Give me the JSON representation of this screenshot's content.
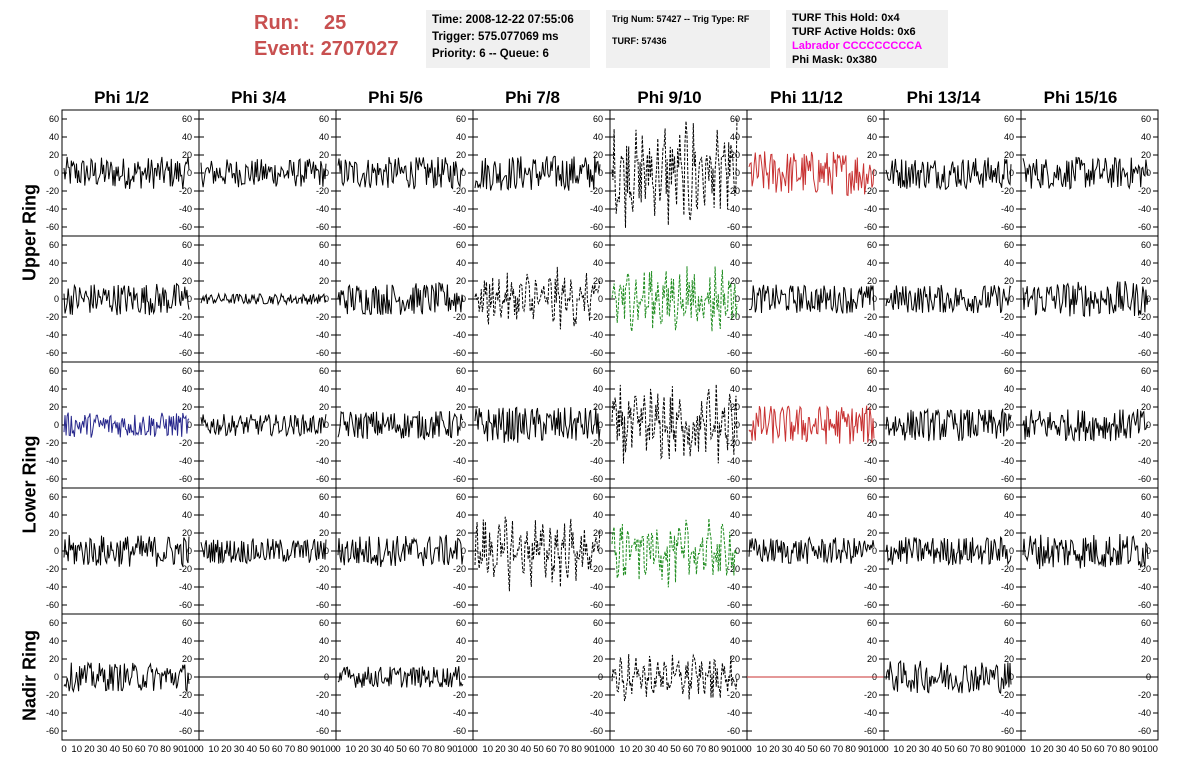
{
  "header": {
    "run_label": "Run:",
    "run_value": "25",
    "event_label": "Event:",
    "event_value": "2707027"
  },
  "info_time": {
    "time": "Time: 2008-12-22 07:55:06",
    "trigger": "Trigger: 575.077069 ms",
    "priority": "Priority: 6 -- Queue: 6"
  },
  "info_trig": {
    "trig_line": "Trig Num: 57427 -- Trig Type: RF",
    "turf_line": "TURF: 57436"
  },
  "info_turf": {
    "hold": "TURF This Hold: 0x4",
    "active": "TURF Active Holds: 0x6",
    "labrador": "Labrador CCCCCCCCCA",
    "phi_mask": "Phi Mask: 0x380"
  },
  "colors": {
    "run_text": "#c85050",
    "info_bg": "#f0f0f0",
    "labrador": "#ff00ff",
    "trace_black": "#000000",
    "trace_red": "#c83232",
    "trace_blue": "#28288c",
    "trace_green": "#1e8c1e"
  },
  "columns": [
    "Phi 1/2",
    "Phi 3/4",
    "Phi 5/6",
    "Phi 7/8",
    "Phi 9/10",
    "Phi 11/12",
    "Phi 13/14",
    "Phi 15/16"
  ],
  "row_groups": [
    "Upper Ring",
    "Lower Ring",
    "Nadir Ring"
  ],
  "chart_data": {
    "type": "line",
    "grid_rows": 5,
    "grid_cols": 8,
    "xlim": [
      0,
      100
    ],
    "ylim": [
      -70,
      70
    ],
    "y_ticks": [
      -60,
      -40,
      -20,
      0,
      20,
      40,
      60
    ],
    "x_tick_labels": [
      "0",
      "10",
      "20",
      "30",
      "40",
      "50",
      "60",
      "70",
      "80",
      "90",
      "100"
    ],
    "panels": [
      [
        {
          "color": "black",
          "amp": 18,
          "style": "solid"
        },
        {
          "color": "black",
          "amp": 16,
          "style": "solid"
        },
        {
          "color": "black",
          "amp": 18,
          "style": "solid"
        },
        {
          "color": "black",
          "amp": 20,
          "style": "solid"
        },
        {
          "color": "black",
          "amp": 45,
          "style": "dashed"
        },
        {
          "color": "red",
          "amp": 25,
          "style": "solid"
        },
        {
          "color": "black",
          "amp": 18,
          "style": "solid"
        },
        {
          "color": "black",
          "amp": 18,
          "style": "solid"
        }
      ],
      [
        {
          "color": "black",
          "amp": 18,
          "style": "solid"
        },
        {
          "color": "black",
          "amp": 6,
          "style": "solid"
        },
        {
          "color": "black",
          "amp": 18,
          "style": "solid"
        },
        {
          "color": "black",
          "amp": 25,
          "style": "dashed"
        },
        {
          "color": "green",
          "amp": 30,
          "style": "dashed"
        },
        {
          "color": "black",
          "amp": 16,
          "style": "solid"
        },
        {
          "color": "black",
          "amp": 16,
          "style": "solid"
        },
        {
          "color": "black",
          "amp": 20,
          "style": "solid"
        }
      ],
      [
        {
          "color": "blue",
          "amp": 14,
          "style": "solid"
        },
        {
          "color": "black",
          "amp": 12,
          "style": "solid"
        },
        {
          "color": "black",
          "amp": 16,
          "style": "solid"
        },
        {
          "color": "black",
          "amp": 20,
          "style": "solid"
        },
        {
          "color": "black",
          "amp": 35,
          "style": "dashed"
        },
        {
          "color": "red",
          "amp": 22,
          "style": "solid"
        },
        {
          "color": "black",
          "amp": 18,
          "style": "solid"
        },
        {
          "color": "black",
          "amp": 18,
          "style": "solid"
        }
      ],
      [
        {
          "color": "black",
          "amp": 18,
          "style": "solid"
        },
        {
          "color": "black",
          "amp": 14,
          "style": "solid"
        },
        {
          "color": "black",
          "amp": 18,
          "style": "solid"
        },
        {
          "color": "black",
          "amp": 30,
          "style": "dashed"
        },
        {
          "color": "green",
          "amp": 28,
          "style": "dashed"
        },
        {
          "color": "black",
          "amp": 15,
          "style": "solid"
        },
        {
          "color": "black",
          "amp": 16,
          "style": "solid"
        },
        {
          "color": "black",
          "amp": 20,
          "style": "solid"
        }
      ],
      [
        {
          "color": "black",
          "amp": 16,
          "style": "solid"
        },
        {
          "color": "black",
          "amp": 0,
          "style": "flat"
        },
        {
          "color": "black",
          "amp": 12,
          "style": "solid"
        },
        {
          "color": "black",
          "amp": 0,
          "style": "flat"
        },
        {
          "color": "black",
          "amp": 20,
          "style": "dashed"
        },
        {
          "color": "red",
          "amp": 0,
          "style": "flat"
        },
        {
          "color": "black",
          "amp": 18,
          "style": "solid"
        },
        {
          "color": "black",
          "amp": 0,
          "style": "flat"
        }
      ]
    ]
  }
}
